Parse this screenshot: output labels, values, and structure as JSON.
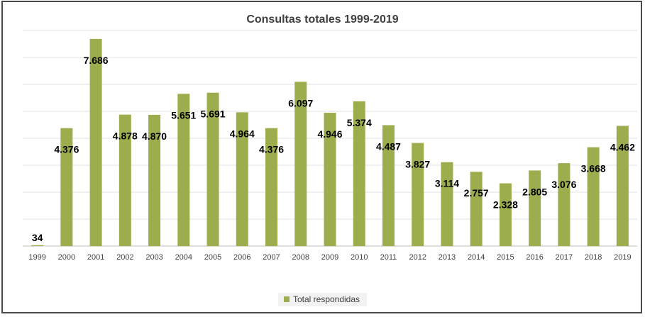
{
  "chart_data": {
    "type": "bar",
    "title": "Consultas totales 1999-2019",
    "xlabel": "",
    "ylabel": "",
    "categories": [
      "1999",
      "2000",
      "2001",
      "2002",
      "2003",
      "2004",
      "2005",
      "2006",
      "2007",
      "2008",
      "2009",
      "2010",
      "2011",
      "2012",
      "2013",
      "2014",
      "2015",
      "2016",
      "2017",
      "2018",
      "2019"
    ],
    "series": [
      {
        "name": "Total respondidas",
        "values": [
          34,
          4376,
          7686,
          4878,
          4870,
          5651,
          5691,
          4964,
          4376,
          6097,
          4946,
          5374,
          4487,
          3827,
          3114,
          2757,
          2328,
          2805,
          3076,
          3668,
          4462
        ],
        "labels": [
          "34",
          "4.376",
          "7.686",
          "4.878",
          "4.870",
          "5.651",
          "5.691",
          "4.964",
          "4.376",
          "6.097",
          "4.946",
          "5.374",
          "4.487",
          "3.827",
          "3.114",
          "2.757",
          "2.328",
          "2.805",
          "3.076",
          "3.668",
          "4.462"
        ]
      }
    ],
    "ylim": [
      0,
      8000
    ],
    "grid": true,
    "legend": "bottom",
    "colors": {
      "bar": "#9bad4d",
      "grid": "#e0e0e0",
      "axis": "#bfbfbf",
      "text": "#404040"
    }
  }
}
